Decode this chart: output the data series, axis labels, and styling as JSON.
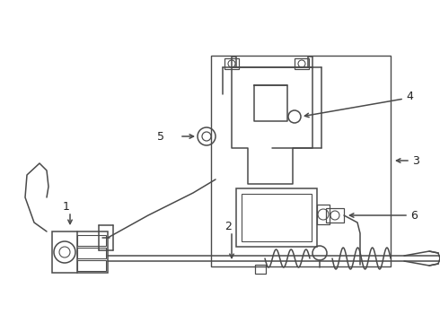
{
  "bg_color": "#ffffff",
  "lc": "#4a4a4a",
  "lw": 1.1,
  "figsize": [
    4.9,
    3.6
  ],
  "dpi": 100,
  "label_fs": 9
}
